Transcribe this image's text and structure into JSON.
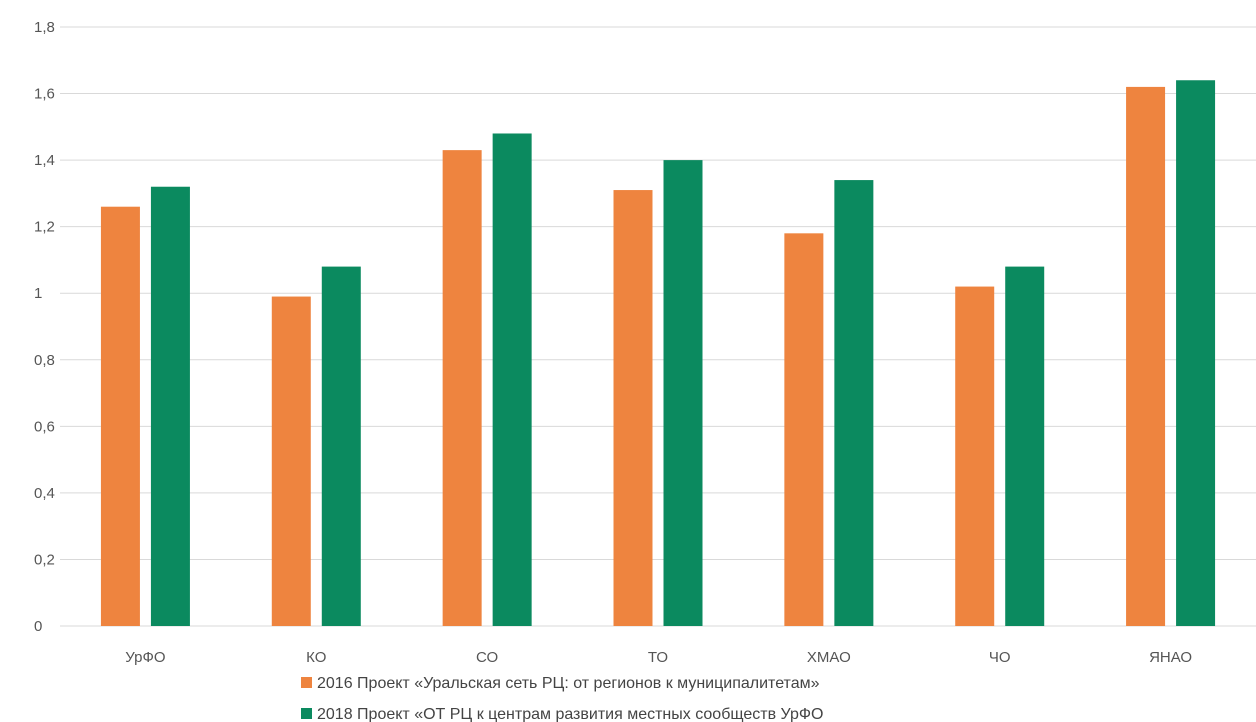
{
  "chart_data": {
    "type": "bar",
    "categories": [
      "УрФО",
      "КО",
      "СО",
      "ТО",
      "ХМАО",
      "ЧО",
      "ЯНАО"
    ],
    "series": [
      {
        "name": "2016 Проект «Уральская сеть РЦ: от регионов к муниципалитетам»",
        "color": "#ee843f",
        "values": [
          1.26,
          0.99,
          1.43,
          1.31,
          1.18,
          1.02,
          1.62
        ]
      },
      {
        "name": "2018 Проект «ОТ РЦ к центрам развития местных сообществ УрФО",
        "color": "#0b8a5f",
        "values": [
          1.32,
          1.08,
          1.48,
          1.4,
          1.34,
          1.08,
          1.64
        ]
      }
    ],
    "ylim": [
      0,
      1.8
    ],
    "yticks": [
      "0",
      "0,2",
      "0,4",
      "0,6",
      "0,8",
      "1",
      "1,2",
      "1,4",
      "1,6",
      "1,8"
    ],
    "grid": true,
    "legend_position": "bottom",
    "title": "",
    "xlabel": "",
    "ylabel": ""
  }
}
